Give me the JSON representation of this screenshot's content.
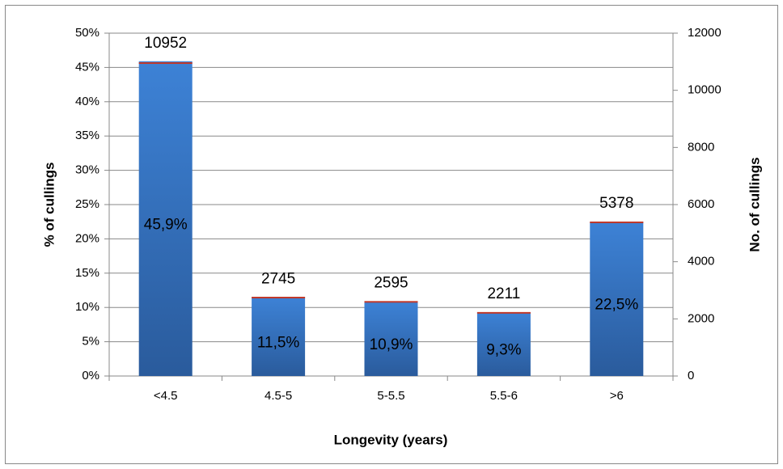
{
  "chart_data": {
    "type": "bar",
    "xlabel": "Longevity (years)",
    "ylabel": "% of cullings",
    "y2label": "No. of cullings",
    "categories": [
      "<4.5",
      "4.5-5",
      "5-5.5",
      "5.5-6",
      ">6"
    ],
    "series": [
      {
        "color": "#3a78c8",
        "values": [
          45.9,
          11.5,
          10.9,
          9.3,
          22.5
        ],
        "value_labels": [
          "45,9%",
          "11,5%",
          "10,9%",
          "9,3%",
          "22,5%"
        ]
      },
      {
        "color": "#c0392b",
        "axis": "y2",
        "values": [
          10952,
          2745,
          2595,
          2211,
          5378
        ]
      }
    ],
    "ylim": [
      0,
      50
    ],
    "yticks": [
      {
        "value": 0,
        "label": "0%"
      },
      {
        "value": 5,
        "label": "5%"
      },
      {
        "value": 10,
        "label": "10%"
      },
      {
        "value": 15,
        "label": "15%"
      },
      {
        "value": 20,
        "label": "20%"
      },
      {
        "value": 25,
        "label": "25%"
      },
      {
        "value": 30,
        "label": "30%"
      },
      {
        "value": 35,
        "label": "35%"
      },
      {
        "value": 40,
        "label": "40%"
      },
      {
        "value": 45,
        "label": "45%"
      },
      {
        "value": 50,
        "label": "50%"
      }
    ],
    "y2lim": [
      0,
      12000
    ],
    "y2ticks": [
      0,
      2000,
      4000,
      6000,
      8000,
      10000,
      12000
    ],
    "grid": true
  }
}
